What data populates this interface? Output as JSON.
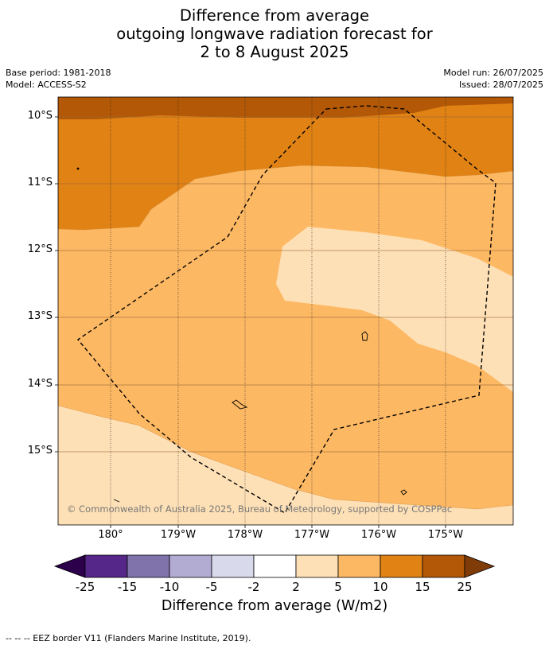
{
  "title_lines": [
    "Difference from average",
    "outgoing longwave radiation forecast for",
    "2 to 8 August 2025"
  ],
  "meta": {
    "base_period": "Base period: 1981-2018",
    "model": "Model: ACCESS-S2",
    "model_run": "Model run: 26/07/2025",
    "issued": "Issued: 28/07/2025"
  },
  "map": {
    "latitude_labels": [
      "10°S",
      "11°S",
      "12°S",
      "13°S",
      "14°S",
      "15°S"
    ],
    "longitude_labels": [
      "180°",
      "179°W",
      "178°W",
      "177°W",
      "176°W",
      "175°W"
    ],
    "credit": "© Commonwealth of Australia 2025, Bureau of Meteorology, supported by COSPPac",
    "eez_style": "dashed",
    "fill_colors": {
      "class_15_25": "#b35806",
      "class_10_15": "#e08214",
      "class_5_10": "#fdb863",
      "class_2_5": "#fee0b6"
    }
  },
  "colorbar": {
    "ticks": [
      "-25",
      "-15",
      "-10",
      "-5",
      "-2",
      "2",
      "5",
      "10",
      "15",
      "25"
    ],
    "colors": [
      "#2d004b",
      "#542788",
      "#8073ac",
      "#b2abd2",
      "#d8daeb",
      "#ffffff",
      "#fee0b6",
      "#fdb863",
      "#e08214",
      "#b35806",
      "#7f3b08"
    ],
    "label": "Difference from average (W/m2)"
  },
  "footer": "--  --  -- EEZ border V11 (Flanders Marine Institute, 2019)."
}
